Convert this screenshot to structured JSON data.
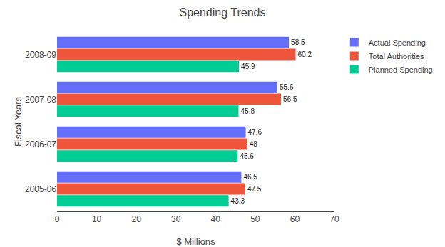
{
  "chart_data": {
    "type": "bar",
    "orientation": "horizontal",
    "title": "Spending Trends",
    "x_label": "$ Millions",
    "y_label": "Fiscal Years",
    "categories": [
      "2005-06",
      "2006-07",
      "2007-08",
      "2008-09"
    ],
    "series": [
      {
        "name": "Actual Spending",
        "values": [
          46.5,
          47.6,
          55.6,
          58.5
        ]
      },
      {
        "name": "Total Authorities",
        "values": [
          47.5,
          48,
          56.5,
          60.2
        ]
      },
      {
        "name": "Planned Spending",
        "values": [
          43.3,
          45.6,
          45.8,
          45.9
        ]
      }
    ],
    "xlim": [
      0,
      70
    ],
    "xticks": [
      0,
      10,
      20,
      30,
      40,
      50,
      60,
      70
    ],
    "data_labels": true,
    "grid": false,
    "legend": "upper right"
  }
}
